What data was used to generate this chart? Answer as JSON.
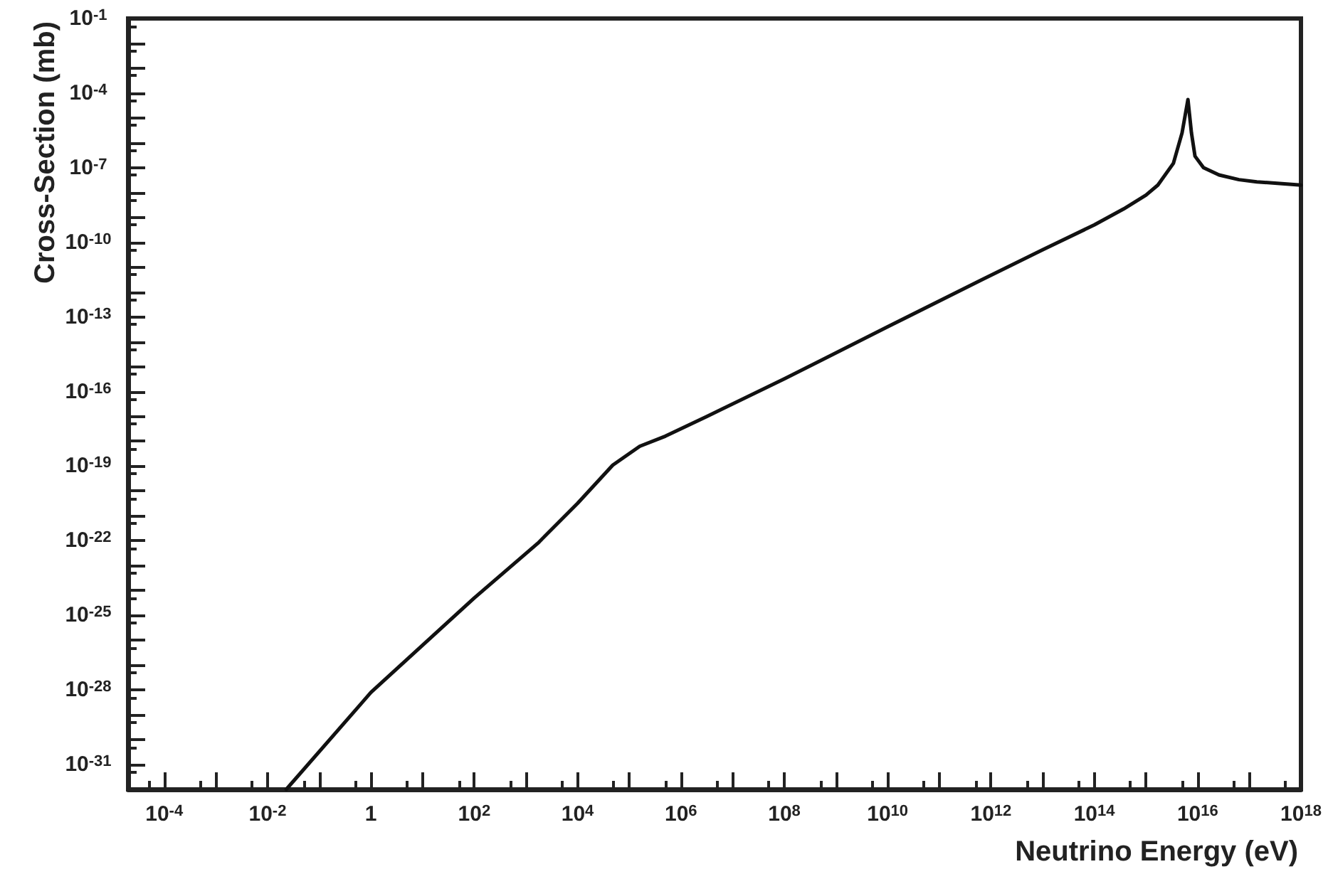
{
  "chart_data": {
    "type": "line",
    "xlabel": "Neutrino Energy (eV)",
    "ylabel": "Cross-Section (mb)",
    "log": "xy",
    "grid": false,
    "marker": "none",
    "line_style": "solid",
    "xlim": [
      2e-05,
      1e+18
    ],
    "ylim": [
      1e-32,
      0.1
    ],
    "xticks": [
      {
        "value": 5e-05,
        "label": null
      },
      {
        "value": 0.0001,
        "label": "10$^{-4}$"
      },
      {
        "value": 0.0005,
        "label": null
      },
      {
        "value": 0.001,
        "label": null
      },
      {
        "value": 0.005,
        "label": null
      },
      {
        "value": 0.01,
        "label": "10$^{-2}$"
      },
      {
        "value": 0.05,
        "label": null
      },
      {
        "value": 0.1,
        "label": null
      },
      {
        "value": 0.5,
        "label": null
      },
      1,
      {
        "value": 5,
        "label": null
      },
      {
        "value": 10,
        "label": null
      },
      {
        "value": 50,
        "label": null
      },
      {
        "value": 100,
        "label": "10$^{2}$"
      },
      {
        "value": 500,
        "label": null
      },
      {
        "value": 1000.0,
        "label": null
      },
      {
        "value": 5000.0,
        "label": null
      },
      {
        "value": 10000.0,
        "label": "10$^{4}$"
      },
      {
        "value": 50000.0,
        "label": null
      },
      {
        "value": 100000.0,
        "label": null
      },
      {
        "value": 500000.0,
        "label": null
      },
      {
        "value": 1000000.0,
        "label": "10$^{6}$"
      },
      {
        "value": 5000000.0,
        "label": null
      },
      {
        "value": 10000000.0,
        "label": null
      },
      {
        "value": 50000000.0,
        "label": null
      },
      {
        "value": 100000000.0,
        "label": "10$^{8}$"
      },
      {
        "value": 500000000.0,
        "label": null
      },
      {
        "value": 1000000000.0,
        "label": null
      },
      {
        "value": 5000000000.0,
        "label": null
      },
      {
        "value": 10000000000.0,
        "label": "10$^{10}$"
      },
      {
        "value": 50000000000.0,
        "label": null
      },
      {
        "value": 100000000000.0,
        "label": null
      },
      {
        "value": 500000000000.0,
        "label": null
      },
      {
        "value": 1000000000000.0,
        "label": "10$^{12}$"
      },
      {
        "value": 5000000000000.0,
        "label": null
      },
      {
        "value": 10000000000000.0,
        "label": null
      },
      {
        "value": 50000000000000.0,
        "label": null
      },
      {
        "value": 100000000000000.0,
        "label": "10$^{14}$"
      },
      {
        "value": 500000000000000.0,
        "label": null
      },
      {
        "value": 1000000000000000.0,
        "label": null
      },
      {
        "value": 5000000000000000.0,
        "label": null
      },
      {
        "value": 1e+16,
        "label": "10$^{16}$"
      },
      {
        "value": 5e+16,
        "label": null
      },
      {
        "value": 1e+17,
        "label": null
      },
      {
        "value": 5e+17,
        "label": null
      },
      {
        "value": 1e+18,
        "label": "10$^{18}$"
      }
    ],
    "yticks": [
      {
        "value": 5e-32,
        "label": null
      },
      {
        "value": 1e-31,
        "label": "10$^{-31}$"
      },
      {
        "value": 5e-31,
        "label": null
      },
      {
        "value": 1e-30,
        "label": null
      },
      {
        "value": 5e-30,
        "label": null
      },
      {
        "value": 1e-29,
        "label": null
      },
      {
        "value": 5e-29,
        "label": null
      },
      {
        "value": 1e-28,
        "label": "10$^{-28}$"
      },
      {
        "value": 5e-28,
        "label": null
      },
      {
        "value": 1e-27,
        "label": null
      },
      {
        "value": 5e-27,
        "label": null
      },
      {
        "value": 1e-26,
        "label": null
      },
      {
        "value": 5e-26,
        "label": null
      },
      {
        "value": 1e-25,
        "label": "10$^{-25}$"
      },
      {
        "value": 5e-25,
        "label": null
      },
      {
        "value": 1e-24,
        "label": null
      },
      {
        "value": 5e-24,
        "label": null
      },
      {
        "value": 1e-23,
        "label": null
      },
      {
        "value": 5e-23,
        "label": null
      },
      {
        "value": 1e-22,
        "label": "10$^{-22}$"
      },
      {
        "value": 5e-22,
        "label": null
      },
      {
        "value": 1e-21,
        "label": null
      },
      {
        "value": 5e-21,
        "label": null
      },
      {
        "value": 1e-20,
        "label": null
      },
      {
        "value": 5e-20,
        "label": null
      },
      {
        "value": 1e-19,
        "label": "10$^{-19}$"
      },
      {
        "value": 5e-19,
        "label": null
      },
      {
        "value": 1e-18,
        "label": null
      },
      {
        "value": 5e-18,
        "label": null
      },
      {
        "value": 1e-17,
        "label": null
      },
      {
        "value": 5e-17,
        "label": null
      },
      {
        "value": 1e-16,
        "label": "10$^{-16}$"
      },
      {
        "value": 5e-16,
        "label": null
      },
      {
        "value": 1e-15,
        "label": null
      },
      {
        "value": 5e-15,
        "label": null
      },
      {
        "value": 1e-14,
        "label": null
      },
      {
        "value": 5e-14,
        "label": null
      },
      {
        "value": 1e-13,
        "label": "10$^{-13}$"
      },
      {
        "value": 5e-13,
        "label": null
      },
      {
        "value": 1e-12,
        "label": null
      },
      {
        "value": 5e-12,
        "label": null
      },
      {
        "value": 1e-11,
        "label": null
      },
      {
        "value": 5e-11,
        "label": null
      },
      {
        "value": 1e-10,
        "label": "10$^{-10}$"
      },
      {
        "value": 5e-10,
        "label": null
      },
      {
        "value": 1e-09,
        "label": null
      },
      {
        "value": 5e-09,
        "label": null
      },
      {
        "value": 1e-08,
        "label": null
      },
      {
        "value": 5e-08,
        "label": null
      },
      {
        "value": 1e-07,
        "label": "10$^{-7}$"
      },
      {
        "value": 5e-07,
        "label": null
      },
      {
        "value": 1e-06,
        "label": null
      },
      {
        "value": 5e-06,
        "label": null
      },
      {
        "value": 1e-05,
        "label": null
      },
      {
        "value": 5e-05,
        "label": null
      },
      {
        "value": 0.0001,
        "label": "10$^{-4}$"
      },
      {
        "value": 0.0005,
        "label": null
      },
      {
        "value": 0.001,
        "label": null
      },
      {
        "value": 0.005,
        "label": null
      },
      {
        "value": 0.01,
        "label": null
      },
      {
        "value": 0.05,
        "label": null
      },
      {
        "value": 0.1,
        "label": "10$^{-1}$"
      }
    ],
    "series": [
      {
        "color": "#111111",
        "x": [
          0.023,
          1,
          100,
          1700,
          10000.0,
          48000.0,
          160000.0,
          500000.0,
          3200000.0,
          100000000.0,
          10000000000.0,
          660000000000.0,
          10000000000000.0,
          100000000000000.0,
          370000000000000.0,
          1000000000000000.0,
          1700000000000000.0,
          3400000000000000.0,
          5000000000000000.0,
          6500000000000000.0,
          7600000000000000.0,
          8900000000000000.0,
          1.3e+16,
          2.6e+16,
          6.3e+16,
          1.4e+17,
          1e+18
        ],
        "values": [
          1e-32,
          7.9e-29,
          5e-25,
          7.9e-23,
          3.2e-21,
          1.1e-19,
          6.3e-19,
          1.6e-18,
          1e-17,
          3.2e-16,
          4e-14,
          3.1e-12,
          5e-11,
          5e-10,
          2.2e-09,
          7.9e-09,
          2e-08,
          1.5e-07,
          2.5e-06,
          5.5e-05,
          2.5e-06,
          2.9e-07,
          1e-07,
          5.1e-08,
          3.3e-08,
          2.7e-08,
          2e-08
        ]
      }
    ]
  }
}
